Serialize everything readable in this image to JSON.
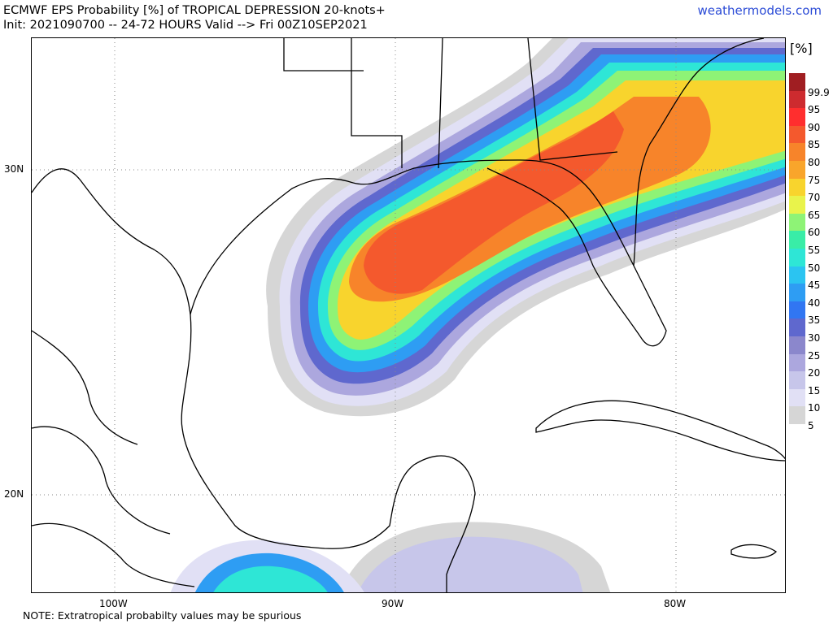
{
  "header": {
    "title_line1": "ECMWF EPS Probability [%] of TROPICAL DEPRESSION 20-knots+",
    "title_line2": "Init: 2021090700 -- 24-72 HOURS Valid --> Fri 00Z10SEP2021",
    "brand": "weathermodels.com"
  },
  "map": {
    "lat_labels": [
      "30N",
      "20N"
    ],
    "lon_labels": [
      "100W",
      "90W",
      "80W"
    ],
    "gridlines": "dotted"
  },
  "legend": {
    "unit": "[%]",
    "levels": [
      {
        "label": "99.9",
        "color": "#a01e22"
      },
      {
        "label": "95",
        "color": "#cd2b2f"
      },
      {
        "label": "90",
        "color": "#ff2e2e"
      },
      {
        "label": "85",
        "color": "#f4592d"
      },
      {
        "label": "80",
        "color": "#f7842a"
      },
      {
        "label": "75",
        "color": "#f9a52b"
      },
      {
        "label": "70",
        "color": "#f8d42d"
      },
      {
        "label": "65",
        "color": "#e9f34b"
      },
      {
        "label": "60",
        "color": "#8ef376"
      },
      {
        "label": "55",
        "color": "#39eda7"
      },
      {
        "label": "50",
        "color": "#2ee6d6"
      },
      {
        "label": "45",
        "color": "#2bc4f1"
      },
      {
        "label": "40",
        "color": "#2e9df3"
      },
      {
        "label": "35",
        "color": "#3176f2"
      },
      {
        "label": "30",
        "color": "#5f68ce"
      },
      {
        "label": "25",
        "color": "#8b87cc"
      },
      {
        "label": "20",
        "color": "#aca7de"
      },
      {
        "label": "15",
        "color": "#c7c6ea"
      },
      {
        "label": "10",
        "color": "#e1e0f5"
      },
      {
        "label": "5",
        "color": "#d6d6d6"
      }
    ]
  },
  "footer": {
    "note": "NOTE: Extratropical probabilty values may be spurious"
  }
}
